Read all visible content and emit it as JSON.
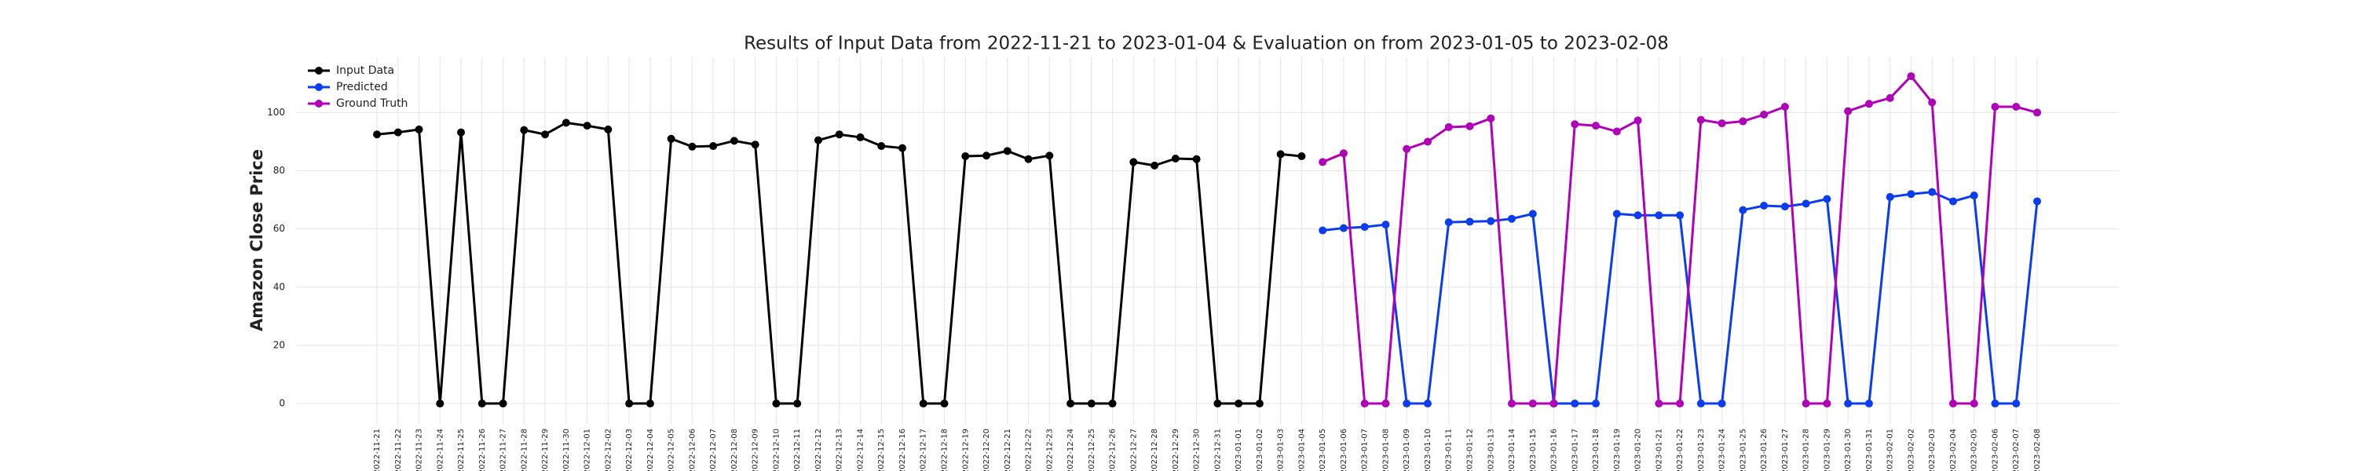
{
  "chart_data": {
    "type": "line",
    "title": "Results of Input Data from 2022-11-21 to 2023-01-04 & Evaluation on from 2023-01-05 to 2023-02-08",
    "y_label": "Amazon Close Price",
    "categories": [
      "2022-11-21",
      "2022-11-22",
      "2022-11-23",
      "2022-11-24",
      "2022-11-25",
      "2022-11-26",
      "2022-11-27",
      "2022-11-28",
      "2022-11-29",
      "2022-11-30",
      "2022-12-01",
      "2022-12-02",
      "2022-12-03",
      "2022-12-04",
      "2022-12-05",
      "2022-12-06",
      "2022-12-07",
      "2022-12-08",
      "2022-12-09",
      "2022-12-10",
      "2022-12-11",
      "2022-12-12",
      "2022-12-13",
      "2022-12-14",
      "2022-12-15",
      "2022-12-16",
      "2022-12-17",
      "2022-12-18",
      "2022-12-19",
      "2022-12-20",
      "2022-12-21",
      "2022-12-22",
      "2022-12-23",
      "2022-12-24",
      "2022-12-25",
      "2022-12-26",
      "2022-12-27",
      "2022-12-28",
      "2022-12-29",
      "2022-12-30",
      "2022-12-31",
      "2023-01-01",
      "2023-01-02",
      "2023-01-03",
      "2023-01-04",
      "2023-01-05",
      "2023-01-06",
      "2023-01-07",
      "2023-01-08",
      "2023-01-09",
      "2023-01-10",
      "2023-01-11",
      "2023-01-12",
      "2023-01-13",
      "2023-01-14",
      "2023-01-15",
      "2023-01-16",
      "2023-01-17",
      "2023-01-18",
      "2023-01-19",
      "2023-01-20",
      "2023-01-21",
      "2023-01-22",
      "2023-01-23",
      "2023-01-24",
      "2023-01-25",
      "2023-01-26",
      "2023-01-27",
      "2023-01-28",
      "2023-01-29",
      "2023-01-30",
      "2023-01-31",
      "2023-02-01",
      "2023-02-02",
      "2023-02-03",
      "2023-02-04",
      "2023-02-05",
      "2023-02-06",
      "2023-02-07",
      "2023-02-08"
    ],
    "series": [
      {
        "name": "Input Data",
        "color": "#000000",
        "values": [
          92.5,
          93.2,
          94.2,
          0,
          93.2,
          0,
          0,
          94,
          92.5,
          96.5,
          95.5,
          94.2,
          0,
          0,
          91,
          88.3,
          88.5,
          90.3,
          89,
          0,
          0,
          90.5,
          92.5,
          91.5,
          88.5,
          87.8,
          0,
          0,
          85,
          85.2,
          86.8,
          84,
          85.2,
          0,
          0,
          0,
          83,
          81.8,
          84.2,
          84,
          0,
          0,
          0,
          85.7,
          85,
          null,
          null,
          null,
          null,
          null,
          null,
          null,
          null,
          null,
          null,
          null,
          null,
          null,
          null,
          null,
          null,
          null,
          null,
          null,
          null,
          null,
          null,
          null,
          null,
          null,
          null,
          null,
          null,
          null,
          null,
          null,
          null,
          null,
          null,
          null
        ]
      },
      {
        "name": "Predicted",
        "color": "#0a3cf0",
        "values": [
          null,
          null,
          null,
          null,
          null,
          null,
          null,
          null,
          null,
          null,
          null,
          null,
          null,
          null,
          null,
          null,
          null,
          null,
          null,
          null,
          null,
          null,
          null,
          null,
          null,
          null,
          null,
          null,
          null,
          null,
          null,
          null,
          null,
          null,
          null,
          null,
          null,
          null,
          null,
          null,
          null,
          null,
          null,
          null,
          null,
          59.5,
          60.3,
          60.7,
          61.5,
          0,
          0,
          62.3,
          62.5,
          62.7,
          63.5,
          65.2,
          0,
          0,
          0,
          65.2,
          64.7,
          64.7,
          64.7,
          0,
          0,
          66.5,
          68,
          67.7,
          68.7,
          70.3,
          0,
          0,
          71,
          72,
          72.7,
          69.5,
          71.5,
          0,
          0,
          69.5
        ]
      },
      {
        "name": "Ground Truth",
        "color": "#b000b8",
        "values": [
          null,
          null,
          null,
          null,
          null,
          null,
          null,
          null,
          null,
          null,
          null,
          null,
          null,
          null,
          null,
          null,
          null,
          null,
          null,
          null,
          null,
          null,
          null,
          null,
          null,
          null,
          null,
          null,
          null,
          null,
          null,
          null,
          null,
          null,
          null,
          null,
          null,
          null,
          null,
          null,
          null,
          null,
          null,
          null,
          null,
          83,
          86,
          0,
          0,
          87.5,
          90,
          95,
          95.3,
          98,
          0,
          0,
          0,
          96,
          95.5,
          93.5,
          97.3,
          0,
          0,
          97.5,
          96.3,
          97,
          99.3,
          102,
          0,
          0,
          100.5,
          103,
          105,
          112.5,
          103.5,
          0,
          0,
          102,
          102,
          100
        ]
      }
    ],
    "ylim": [
      -7,
      119
    ],
    "yticks": [
      0,
      20,
      40,
      60,
      80,
      100
    ],
    "grid": true,
    "legend": "upper left"
  }
}
